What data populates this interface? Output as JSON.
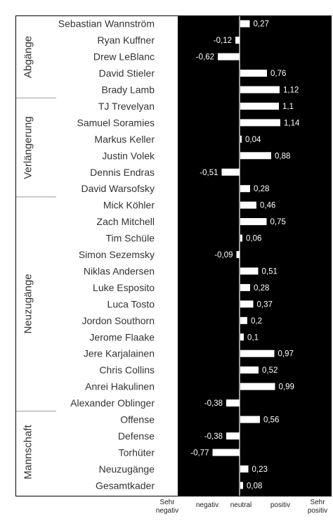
{
  "chart_data": {
    "type": "bar",
    "orientation": "horizontal",
    "title": "",
    "xlim": [
      -1.5,
      1.5
    ],
    "x_tick_labels": [
      "Sehr negativ",
      "negativ",
      "neutral",
      "positiv",
      "Sehr positiv"
    ],
    "groups": [
      {
        "name": "Abgänge",
        "rows": [
          {
            "label": "Sebastian Wannström",
            "value": 0.27,
            "value_label": "0,27"
          },
          {
            "label": "Ryan Kuffner",
            "value": -0.12,
            "value_label": "-0,12"
          },
          {
            "label": "Drew LeBlanc",
            "value": -0.62,
            "value_label": "-0,62"
          },
          {
            "label": "David Stieler",
            "value": 0.76,
            "value_label": "0,76"
          },
          {
            "label": "Brady Lamb",
            "value": 1.12,
            "value_label": "1,12"
          }
        ]
      },
      {
        "name": "Verlängerung",
        "rows": [
          {
            "label": "TJ Trevelyan",
            "value": 1.1,
            "value_label": "1,1"
          },
          {
            "label": "Samuel Soramies",
            "value": 1.14,
            "value_label": "1,14"
          },
          {
            "label": "Markus Keller",
            "value": 0.04,
            "value_label": "0,04"
          },
          {
            "label": "Justin Volek",
            "value": 0.88,
            "value_label": "0,88"
          },
          {
            "label": "Dennis Endras",
            "value": -0.51,
            "value_label": "-0,51"
          },
          {
            "label": "David Warsofsky",
            "value": 0.28,
            "value_label": "0,28"
          }
        ]
      },
      {
        "name": "Neuzugänge",
        "rows": [
          {
            "label": "Mick Köhler",
            "value": 0.46,
            "value_label": "0,46"
          },
          {
            "label": "Zach Mitchell",
            "value": 0.75,
            "value_label": "0,75"
          },
          {
            "label": "Tim Schüle",
            "value": 0.06,
            "value_label": "0,06"
          },
          {
            "label": "Simon Sezemsky",
            "value": -0.09,
            "value_label": "-0,09"
          },
          {
            "label": "Niklas Andersen",
            "value": 0.51,
            "value_label": "0,51"
          },
          {
            "label": "Luke Esposito",
            "value": 0.28,
            "value_label": "0,28"
          },
          {
            "label": "Luca Tosto",
            "value": 0.37,
            "value_label": "0,37"
          },
          {
            "label": "Jordon Southorn",
            "value": 0.2,
            "value_label": "0,2"
          },
          {
            "label": "Jerome Flaake",
            "value": 0.1,
            "value_label": "0,1"
          },
          {
            "label": "Jere Karjalainen",
            "value": 0.97,
            "value_label": "0,97"
          },
          {
            "label": "Chris Collins",
            "value": 0.52,
            "value_label": "0,52"
          },
          {
            "label": "Anrei Hakulinen",
            "value": 0.99,
            "value_label": "0,99"
          },
          {
            "label": "Alexander Oblinger",
            "value": -0.38,
            "value_label": "-0,38"
          }
        ]
      },
      {
        "name": "Mannschaft",
        "rows": [
          {
            "label": "Offense",
            "value": 0.56,
            "value_label": "0,56"
          },
          {
            "label": "Defense",
            "value": -0.38,
            "value_label": "-0,38"
          },
          {
            "label": "Torhüter",
            "value": -0.77,
            "value_label": "-0,77"
          },
          {
            "label": "Neuzugänge",
            "value": 0.23,
            "value_label": "0,23"
          },
          {
            "label": "Gesamtkader",
            "value": 0.08,
            "value_label": "0,08"
          }
        ]
      }
    ],
    "colors": {
      "plot_background": "#000000",
      "bar": "#ffffff",
      "text_on_plot": "#ffffff",
      "label_text": "#333333"
    }
  }
}
